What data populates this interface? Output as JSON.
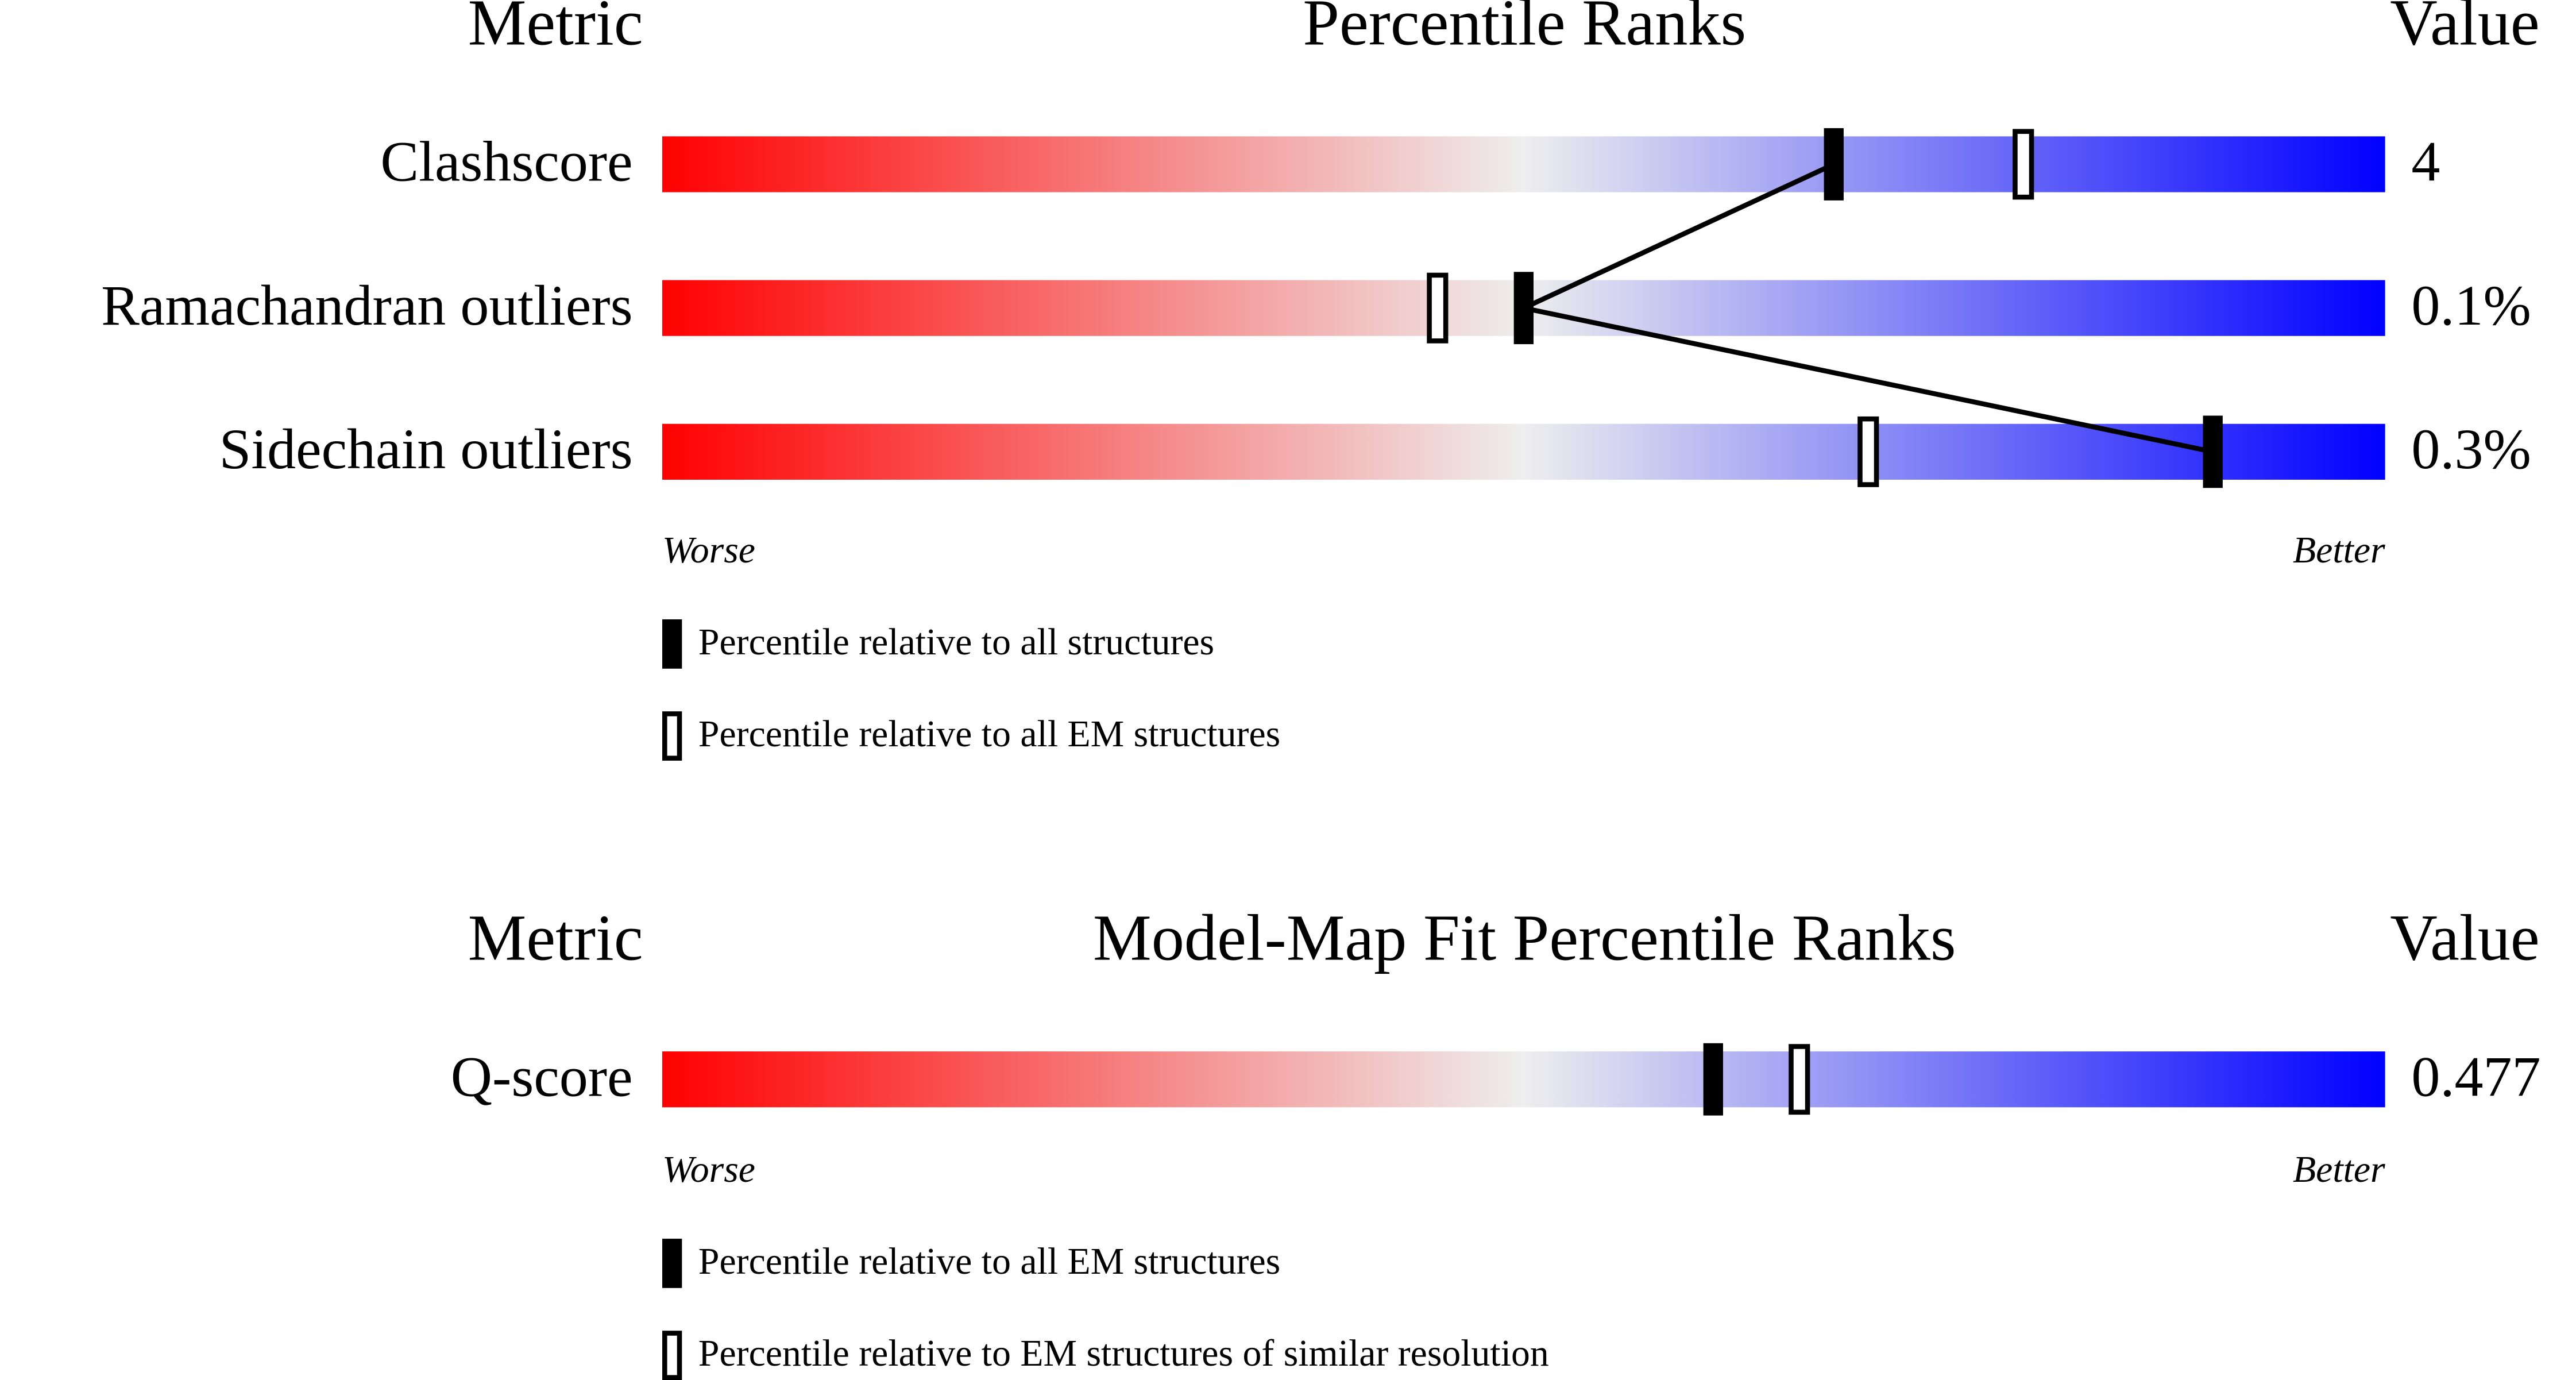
{
  "chart_data": [
    {
      "type": "percentile-slider",
      "title": "Percentile Ranks",
      "metric_header": "Metric",
      "value_header": "Value",
      "categories": [
        "Clashscore",
        "Ramachandran outliers",
        "Sidechain outliers"
      ],
      "metric_values": [
        "4",
        "0.1%",
        "0.3%"
      ],
      "xlim": [
        0,
        100
      ],
      "worse_label": "Worse",
      "better_label": "Better",
      "gradient": [
        "#ff0000",
        "#eeeeee",
        "#0000ff"
      ],
      "connect_first_series": true,
      "series": [
        {
          "name": "Percentile relative to all structures",
          "color": "#000000",
          "filled": true,
          "values": [
            68,
            50,
            90
          ]
        },
        {
          "name": "Percentile relative to all EM structures",
          "color": "#000000",
          "filled": false,
          "values": [
            79,
            45,
            70
          ]
        }
      ]
    },
    {
      "type": "percentile-slider",
      "title": "Model-Map Fit Percentile Ranks",
      "metric_header": "Metric",
      "value_header": "Value",
      "categories": [
        "Q-score"
      ],
      "metric_values": [
        "0.477"
      ],
      "xlim": [
        0,
        100
      ],
      "worse_label": "Worse",
      "better_label": "Better",
      "gradient": [
        "#ff0000",
        "#eeeeee",
        "#0000ff"
      ],
      "connect_first_series": false,
      "series": [
        {
          "name": "Percentile relative to all EM structures",
          "color": "#000000",
          "filled": true,
          "values": [
            61
          ]
        },
        {
          "name": "Percentile relative to EM structures of similar resolution",
          "color": "#000000",
          "filled": false,
          "values": [
            66
          ]
        }
      ]
    }
  ]
}
